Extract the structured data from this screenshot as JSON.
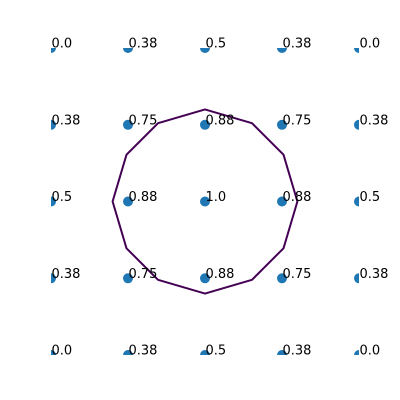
{
  "chart_data": {
    "type": "scatter",
    "title": "",
    "xlabel": "",
    "ylabel": "",
    "axes_visible": false,
    "xlim": [
      -2,
      2
    ],
    "ylim": [
      -2,
      2
    ],
    "marker_color": "#1f77b4",
    "contour_color": "#440154",
    "grid_x": [
      -2,
      -1,
      0,
      1,
      2
    ],
    "grid_y": [
      2,
      1,
      0,
      -1,
      -2
    ],
    "value_labels": [
      [
        "0.0",
        "0.38",
        "0.5",
        "0.38",
        "0.0"
      ],
      [
        "0.38",
        "0.75",
        "0.88",
        "0.75",
        "0.38"
      ],
      [
        "0.5",
        "0.88",
        "1.0",
        "0.88",
        "0.5"
      ],
      [
        "0.38",
        "0.75",
        "0.88",
        "0.75",
        "0.38"
      ],
      [
        "0.0",
        "0.38",
        "0.5",
        "0.38",
        "0.0"
      ]
    ],
    "contour": {
      "level": 0.8,
      "points": [
        [
          0.0,
          1.2
        ],
        [
          -0.61,
          1.02
        ],
        [
          -1.02,
          0.61
        ],
        [
          -1.2,
          0.0
        ],
        [
          -1.02,
          -0.61
        ],
        [
          -0.61,
          -1.02
        ],
        [
          0.0,
          -1.2
        ],
        [
          0.61,
          -1.02
        ],
        [
          1.02,
          -0.61
        ],
        [
          1.2,
          0.0
        ],
        [
          1.02,
          0.61
        ],
        [
          0.61,
          1.02
        ]
      ]
    }
  }
}
